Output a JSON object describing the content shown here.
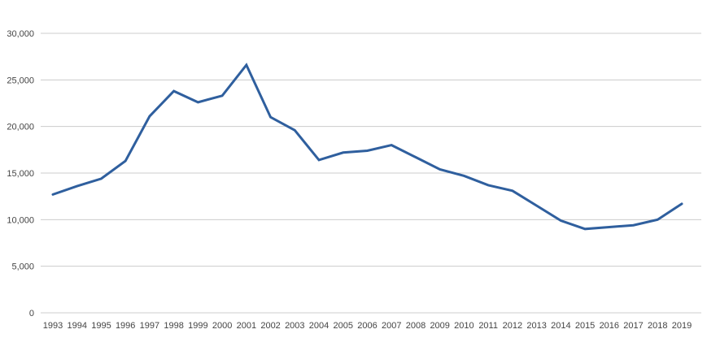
{
  "chart": {
    "colors": {
      "line": "#2F5F9E",
      "grid": "#CCCCCC",
      "axis_text": "#444444",
      "background": "#FFFFFF"
    }
  },
  "chart_data": {
    "type": "line",
    "title": "",
    "xlabel": "",
    "ylabel": "",
    "categories": [
      "1993",
      "1994",
      "1995",
      "1996",
      "1997",
      "1998",
      "1999",
      "2000",
      "2001",
      "2002",
      "2003",
      "2004",
      "2005",
      "2006",
      "2007",
      "2008",
      "2009",
      "2010",
      "2011",
      "2012",
      "2013",
      "2014",
      "2015",
      "2016",
      "2017",
      "2018",
      "2019"
    ],
    "series": [
      {
        "name": "value",
        "values": [
          12700,
          13600,
          14400,
          16300,
          21100,
          23800,
          22600,
          23300,
          26600,
          21000,
          19600,
          16400,
          17200,
          17400,
          18000,
          16700,
          15400,
          14700,
          13700,
          13100,
          11500,
          9900,
          9000,
          9200,
          9400,
          10000,
          11700
        ]
      }
    ],
    "ylim": [
      0,
      30000
    ],
    "y_tick_interval": 5000,
    "y_tick_labels": [
      "0",
      "5,000",
      "10,000",
      "15,000",
      "20,000",
      "25,000",
      "30,000"
    ],
    "grid": true,
    "legend": "none"
  }
}
